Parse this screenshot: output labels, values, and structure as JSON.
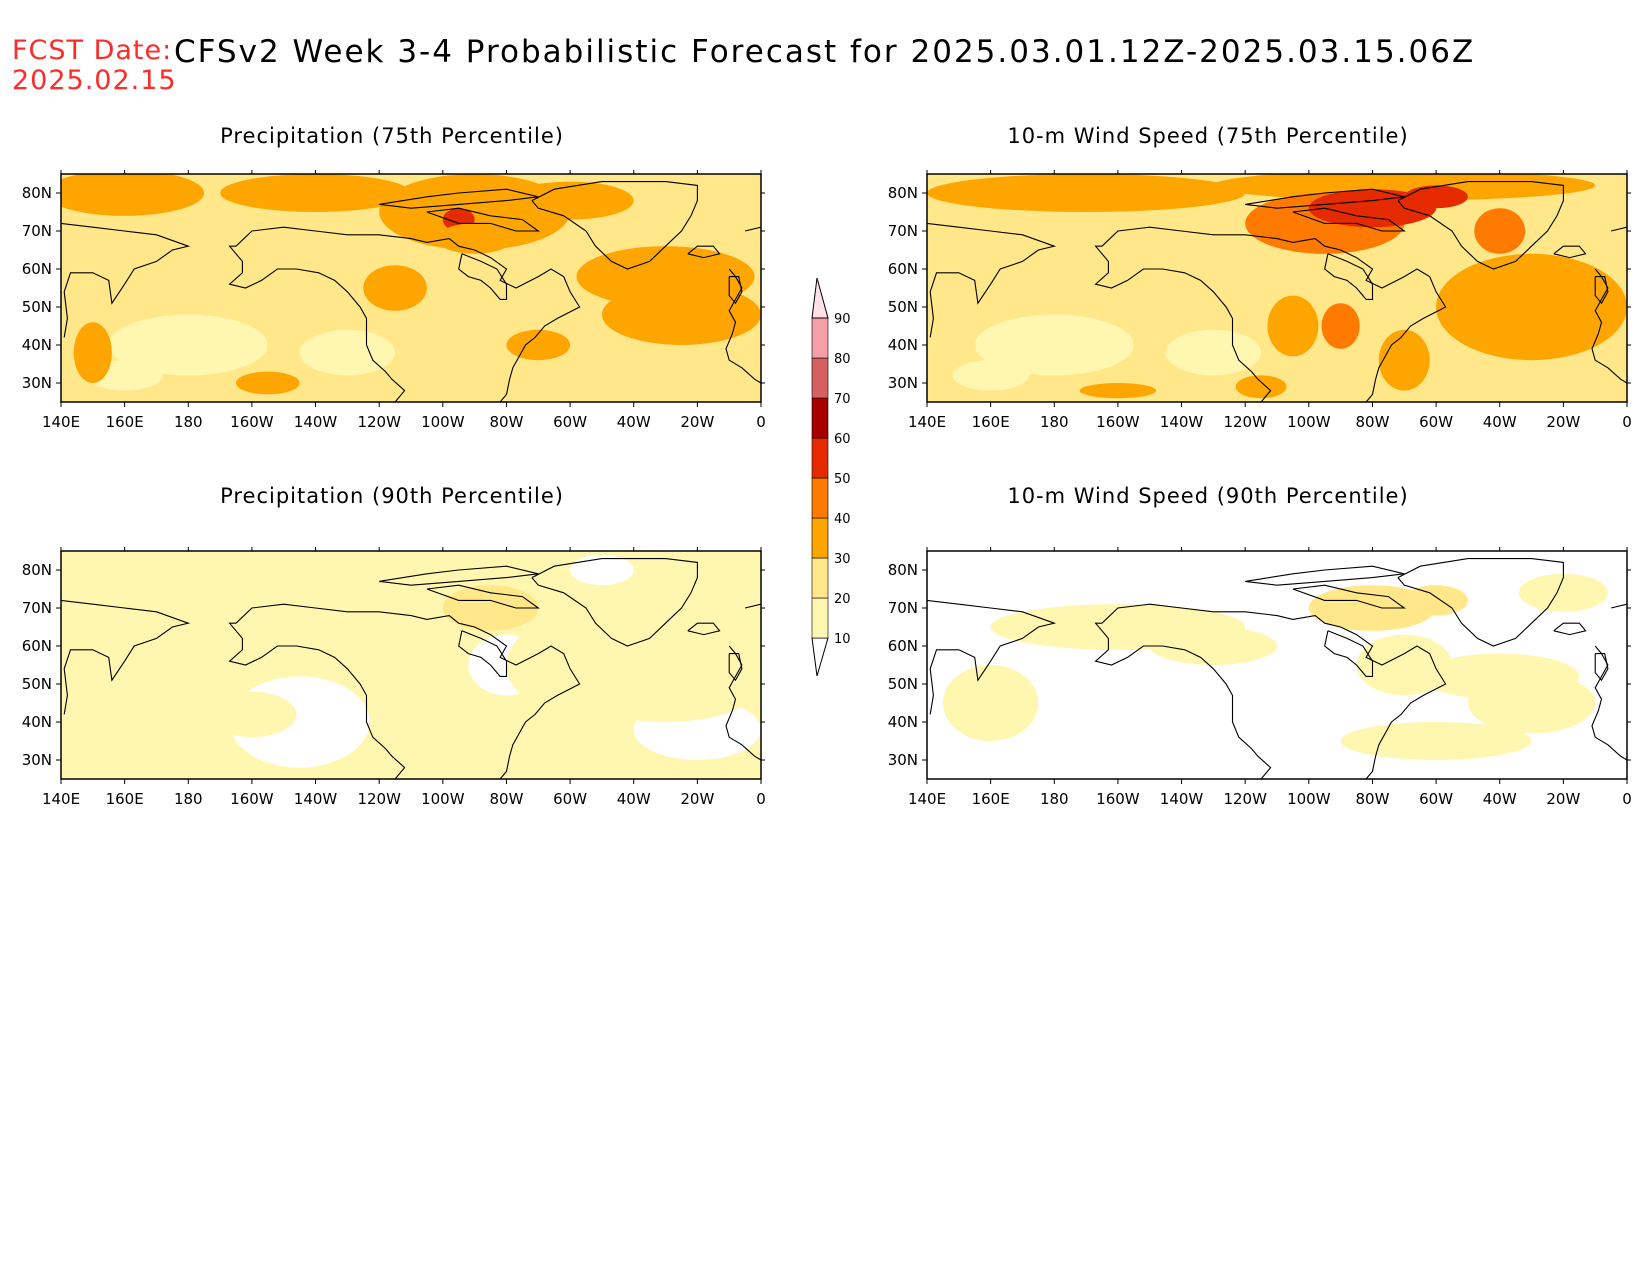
{
  "header": {
    "fcst_label": "FCST Date:",
    "fcst_date": "2025.02.15",
    "title": "CFSv2 Week 3-4 Probabilistic Forecast for 2025.03.01.12Z-2025.03.15.06Z"
  },
  "axes": {
    "lon_ticks": [
      "140E",
      "160E",
      "180",
      "160W",
      "140W",
      "120W",
      "100W",
      "80W",
      "60W",
      "40W",
      "20W",
      "0"
    ],
    "lat_ticks": [
      "80N",
      "70N",
      "60N",
      "50N",
      "40N",
      "30N"
    ]
  },
  "colorbar": {
    "levels": [
      "10",
      "20",
      "30",
      "40",
      "50",
      "60",
      "70",
      "80",
      "90"
    ],
    "colors": [
      "#fff6b0",
      "#ffe78a",
      "#ffa500",
      "#ff7a00",
      "#e52a00",
      "#a80000",
      "#d46060",
      "#f5a0a8",
      "#ffe0e6"
    ]
  },
  "panels": [
    {
      "id": "precip75",
      "title": "Precipitation (75th Percentile)",
      "level": 2
    },
    {
      "id": "wind75",
      "title": "10-m Wind Speed (75th Percentile)",
      "level": 2
    },
    {
      "id": "precip90",
      "title": "Precipitation (90th Percentile)",
      "level": 0
    },
    {
      "id": "wind90",
      "title": "10-m Wind Speed (90th Percentile)",
      "level": 0
    }
  ]
}
